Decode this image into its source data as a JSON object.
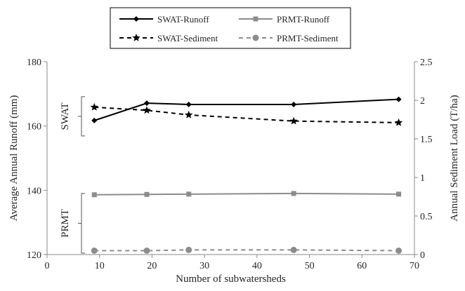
{
  "chart_data": {
    "type": "line",
    "title": "",
    "xlabel": "Number of subwatersheds",
    "ylabel": "Average Annual Runoff (mm)",
    "y2label": "Annual Sediment Load (T/ha)",
    "xlim": [
      0,
      70
    ],
    "ylim": [
      120,
      180
    ],
    "y2lim": [
      0,
      2.5
    ],
    "x_ticks": [
      "0",
      "10",
      "20",
      "30",
      "40",
      "50",
      "60",
      "70"
    ],
    "y_ticks": [
      "120",
      "140",
      "160",
      "180"
    ],
    "y2_ticks": [
      "0",
      "0.5",
      "1",
      "1.5",
      "2",
      "2.5"
    ],
    "grid": false,
    "legend_position": "top",
    "x": [
      9,
      19,
      27,
      47,
      67
    ],
    "series": [
      {
        "name": "SWAT-Runoff",
        "axis": "left",
        "values": [
          161.7,
          167.1,
          166.7,
          166.7,
          168.3
        ],
        "color": "#000000",
        "dash": "solid",
        "marker": "diamond"
      },
      {
        "name": "PRMT-Runoff",
        "axis": "left",
        "values": [
          138.6,
          138.7,
          138.8,
          139.0,
          138.8
        ],
        "color": "#8c8c8c",
        "dash": "solid",
        "marker": "square"
      },
      {
        "name": "SWAT-Sediment",
        "axis": "right",
        "values": [
          1.91,
          1.87,
          1.81,
          1.73,
          1.71
        ],
        "color": "#000000",
        "dash": "dashed",
        "marker": "star"
      },
      {
        "name": "PRMT-Sediment",
        "axis": "right",
        "values": [
          0.05,
          0.05,
          0.06,
          0.06,
          0.05
        ],
        "color": "#8c8c8c",
        "dash": "dashed",
        "marker": "circle"
      }
    ],
    "annotations": [
      {
        "text": "SWAT"
      },
      {
        "text": "PRMT"
      }
    ]
  }
}
